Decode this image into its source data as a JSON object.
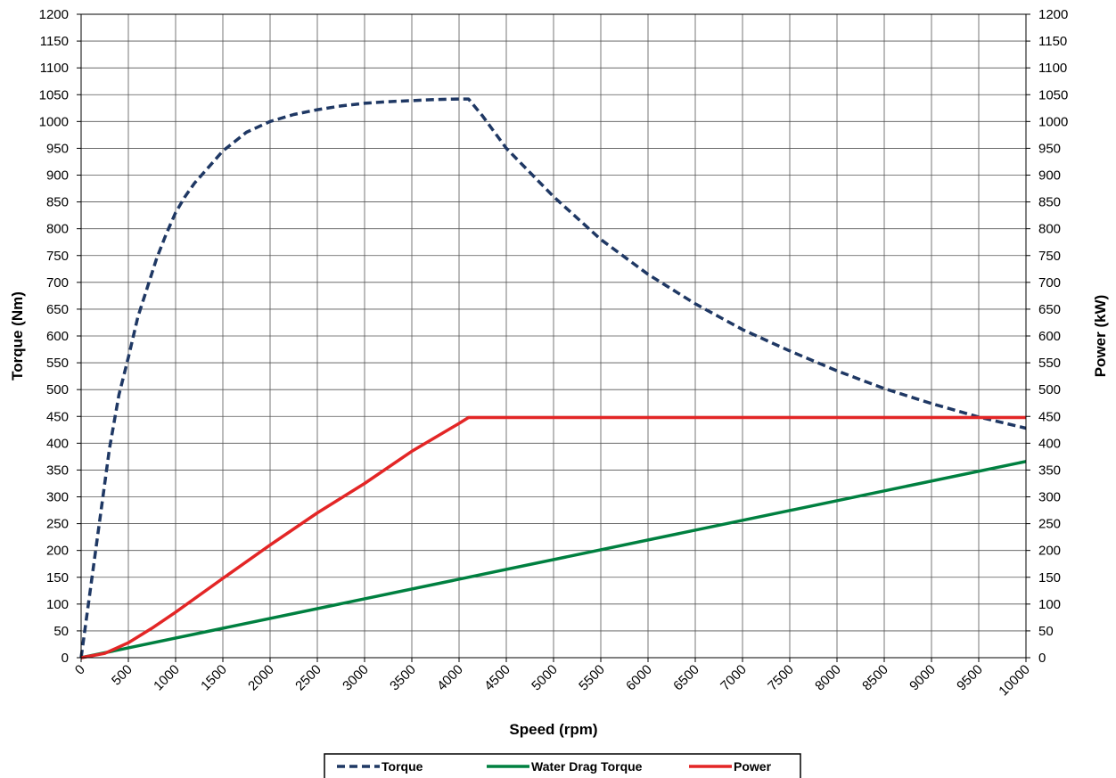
{
  "chart_data": {
    "type": "line",
    "title": "",
    "xlabel": "Speed (rpm)",
    "ylabel": "Torque (Nm)",
    "y2label": "Power (kW)",
    "xlim": [
      0,
      10000
    ],
    "ylim": [
      0,
      1200
    ],
    "y2lim": [
      0,
      1200
    ],
    "x_ticks": [
      0,
      500,
      1000,
      1500,
      2000,
      2500,
      3000,
      3500,
      4000,
      4500,
      5000,
      5500,
      6000,
      6500,
      7000,
      7500,
      8000,
      8500,
      9000,
      9500,
      10000
    ],
    "y_ticks": [
      0,
      50,
      100,
      150,
      200,
      250,
      300,
      350,
      400,
      450,
      500,
      550,
      600,
      650,
      700,
      750,
      800,
      850,
      900,
      950,
      1000,
      1050,
      1100,
      1150,
      1200
    ],
    "grid": true,
    "legend_position": "bottom",
    "series": [
      {
        "name": "Torque",
        "color": "#1f3864",
        "style": "dashed",
        "axis": "left",
        "x": [
          0,
          100,
          200,
          300,
          400,
          500,
          600,
          700,
          800,
          900,
          1000,
          1100,
          1200,
          1300,
          1400,
          1500,
          1750,
          2000,
          2250,
          2500,
          2750,
          3000,
          3250,
          3500,
          3750,
          4000,
          4100,
          4250,
          4500,
          5000,
          5500,
          6000,
          6500,
          7000,
          7500,
          8000,
          8500,
          9000,
          9500,
          10000
        ],
        "y": [
          0,
          130,
          260,
          390,
          490,
          560,
          635,
          690,
          745,
          790,
          830,
          860,
          885,
          905,
          925,
          945,
          980,
          1000,
          1013,
          1022,
          1029,
          1034,
          1037,
          1039,
          1041,
          1042,
          1042,
          1010,
          950,
          860,
          780,
          715,
          660,
          612,
          572,
          535,
          502,
          474,
          449,
          428
        ]
      },
      {
        "name": "Water Drag Torque",
        "color": "#008040",
        "style": "solid",
        "axis": "left",
        "x": [
          0,
          10000
        ],
        "y": [
          0,
          366
        ]
      },
      {
        "name": "Power",
        "color": "#e32626",
        "style": "solid",
        "axis": "right",
        "x": [
          0,
          250,
          500,
          750,
          1000,
          1500,
          2000,
          2500,
          3000,
          3500,
          4000,
          4100,
          4500,
          5000,
          6000,
          7000,
          8000,
          9000,
          10000
        ],
        "y": [
          0,
          8,
          28,
          55,
          85,
          148,
          210,
          270,
          325,
          385,
          437,
          448,
          448,
          448,
          448,
          448,
          448,
          448,
          448
        ]
      }
    ]
  }
}
